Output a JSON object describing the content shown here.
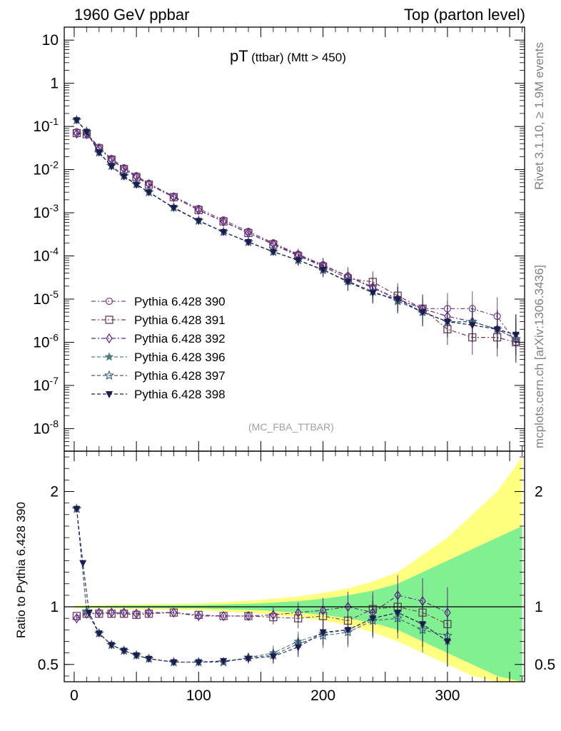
{
  "header": {
    "left": "1960 GeV ppbar",
    "right": "Top (parton level)"
  },
  "plot_title": {
    "main": "pT",
    "sub": "(ttbar) (Mtt > 450)"
  },
  "side_labels": {
    "rivet": "Rivet 3.1.10, ≥ 1.9M events",
    "mcplots": "mcplots.cern.ch [arXiv:1306.3436]"
  },
  "analysis_tag": "(MC_FBA_TTBAR)",
  "ratio_ylabel": "Ratio to Pythia 6.428 390",
  "colors": {
    "s390": "#7e4a86",
    "s391": "#6c3d57",
    "s392": "#5e2a8a",
    "s396": "#4e7d7a",
    "s397": "#3f5f7e",
    "s398": "#1c1c4f",
    "band_yellow": "#ffff80",
    "band_green": "#80f090"
  },
  "chart_data": [
    {
      "type": "scatter",
      "panel": "main",
      "title": "pT (ttbar) (Mtt > 450)",
      "xlabel": "",
      "ylabel": "",
      "xlim": [
        -8,
        362
      ],
      "ylim": [
        3e-09,
        20
      ],
      "yscale": "log",
      "y_tick_labels": [
        "10",
        "1",
        "10^-1",
        "10^-2",
        "10^-3",
        "10^-4",
        "10^-5",
        "10^-6",
        "10^-7",
        "10^-8"
      ],
      "legend_position": "lower-left",
      "series": [
        {
          "name": "Pythia 6.428 390",
          "marker": "open-circle",
          "line": "dash-dot",
          "x": [
            2,
            10,
            20,
            30,
            40,
            50,
            60,
            80,
            100,
            120,
            140,
            160,
            180,
            200,
            220,
            240,
            260,
            280,
            300,
            320,
            340,
            355
          ],
          "y": [
            0.075,
            0.07,
            0.033,
            0.018,
            0.011,
            0.0072,
            0.0048,
            0.0024,
            0.00125,
            0.00068,
            0.00037,
            0.0002,
            0.00011,
            6.2e-05,
            3.4e-05,
            1.9e-05,
            1e-05,
            6e-06,
            6e-06,
            6e-06,
            4e-06,
            1e-06
          ]
        },
        {
          "name": "Pythia 6.428 391",
          "marker": "open-square",
          "line": "dash-dot",
          "x": [
            2,
            10,
            20,
            30,
            40,
            50,
            60,
            80,
            100,
            120,
            140,
            160,
            180,
            200,
            220,
            240,
            260,
            280,
            300,
            320,
            340,
            355
          ],
          "y": [
            0.07,
            0.066,
            0.031,
            0.017,
            0.0103,
            0.0067,
            0.0045,
            0.0023,
            0.00116,
            0.00063,
            0.00034,
            0.000185,
            0.0001,
            5.7e-05,
            3e-05,
            2.5e-05,
            1.2e-05,
            6e-06,
            2e-06,
            1.3e-06,
            1.3e-06,
            1e-06
          ]
        },
        {
          "name": "Pythia 6.428 392",
          "marker": "open-diamond",
          "line": "dash-dot",
          "x": [
            2,
            10,
            20,
            30,
            40,
            50,
            60,
            80,
            100,
            120,
            140,
            160,
            180,
            200,
            220,
            240,
            260,
            280,
            300,
            320,
            340,
            355
          ],
          "y": [
            0.068,
            0.066,
            0.031,
            0.017,
            0.0104,
            0.0068,
            0.0046,
            0.0023,
            0.00115,
            0.00062,
            0.00034,
            0.00019,
            0.000105,
            6e-05,
            3.4e-05,
            1.8e-05,
            1e-05,
            6e-06,
            4e-06,
            3e-06,
            2e-06,
            1.2e-06
          ]
        },
        {
          "name": "Pythia 6.428 396",
          "marker": "star",
          "line": "dashed",
          "x": [
            2,
            10,
            20,
            30,
            40,
            50,
            60,
            80,
            100,
            120,
            140,
            160,
            180,
            200,
            220,
            240,
            260,
            280,
            300,
            320,
            340,
            355
          ],
          "y": [
            0.14,
            0.075,
            0.025,
            0.012,
            0.007,
            0.0045,
            0.003,
            0.0013,
            0.00065,
            0.00036,
            0.00021,
            0.000125,
            8e-05,
            4.8e-05,
            2.6e-05,
            1.5e-05,
            9e-06,
            5e-06,
            3e-06,
            3e-06,
            2e-06,
            1.5e-06
          ]
        },
        {
          "name": "Pythia 6.428 397",
          "marker": "open-star",
          "line": "dashed",
          "x": [
            2,
            10,
            20,
            30,
            40,
            50,
            60,
            80,
            100,
            120,
            140,
            160,
            180,
            200,
            220,
            240,
            260,
            280,
            300,
            320,
            340,
            355
          ],
          "y": [
            0.14,
            0.076,
            0.025,
            0.0122,
            0.0071,
            0.0046,
            0.003,
            0.00133,
            0.00066,
            0.00036,
            0.00021,
            0.000125,
            8e-05,
            4.7e-05,
            2.6e-05,
            1.5e-05,
            9e-06,
            5e-06,
            3e-06,
            3e-06,
            2e-06,
            1.2e-06
          ]
        },
        {
          "name": "Pythia 6.428 398",
          "marker": "filled-triangle-down",
          "line": "dashed",
          "x": [
            2,
            10,
            20,
            30,
            40,
            50,
            60,
            80,
            100,
            120,
            140,
            160,
            180,
            200,
            220,
            240,
            260,
            280,
            300,
            320,
            340,
            355
          ],
          "y": [
            0.14,
            0.075,
            0.025,
            0.012,
            0.007,
            0.0045,
            0.003,
            0.0013,
            0.00065,
            0.00036,
            0.00021,
            0.000125,
            8e-05,
            4.8e-05,
            2.5e-05,
            1.4e-05,
            1e-05,
            5e-06,
            3e-06,
            2.5e-06,
            2e-06,
            1.5e-06
          ]
        }
      ]
    },
    {
      "type": "scatter",
      "panel": "ratio",
      "xlabel": "",
      "ylabel": "Ratio to Pythia 6.428 390",
      "xlim": [
        -8,
        362
      ],
      "ylim": [
        0.35,
        2.35
      ],
      "x_tick_labels": [
        "0",
        "100",
        "200",
        "300"
      ],
      "y_tick_labels": [
        "0.5",
        "1",
        "2"
      ],
      "reference_line": 1,
      "uncertainty_band": {
        "x": [
          0,
          50,
          100,
          150,
          180,
          200,
          220,
          240,
          260,
          280,
          300,
          320,
          340,
          360
        ],
        "yellow_low": [
          0.99,
          0.98,
          0.97,
          0.94,
          0.91,
          0.88,
          0.84,
          0.78,
          0.7,
          0.6,
          0.5,
          0.4,
          0.35,
          0.35
        ],
        "yellow_high": [
          1.01,
          1.02,
          1.03,
          1.06,
          1.09,
          1.12,
          1.16,
          1.22,
          1.3,
          1.45,
          1.6,
          1.8,
          2.0,
          2.3
        ],
        "green_low": [
          0.995,
          0.99,
          0.985,
          0.97,
          0.95,
          0.93,
          0.9,
          0.86,
          0.8,
          0.7,
          0.6,
          0.5,
          0.4,
          0.35
        ],
        "green_high": [
          1.005,
          1.01,
          1.015,
          1.03,
          1.05,
          1.07,
          1.1,
          1.14,
          1.2,
          1.3,
          1.4,
          1.5,
          1.6,
          1.7
        ]
      },
      "series": [
        {
          "name": "Pythia 6.428 391",
          "x": [
            2,
            10,
            20,
            30,
            40,
            50,
            60,
            80,
            100,
            120,
            140,
            160,
            180,
            200,
            220,
            240,
            260,
            280,
            300
          ],
          "y": [
            0.92,
            0.94,
            0.94,
            0.94,
            0.94,
            0.93,
            0.94,
            0.95,
            0.93,
            0.92,
            0.92,
            0.91,
            0.9,
            0.92,
            0.88,
            0.98,
            1.0,
            0.95,
            0.85
          ]
        },
        {
          "name": "Pythia 6.428 392",
          "x": [
            2,
            10,
            20,
            30,
            40,
            50,
            60,
            80,
            100,
            120,
            140,
            160,
            180,
            200,
            220,
            240,
            260,
            280,
            300
          ],
          "y": [
            0.9,
            0.94,
            0.95,
            0.95,
            0.95,
            0.94,
            0.95,
            0.95,
            0.92,
            0.92,
            0.92,
            0.93,
            0.95,
            0.97,
            1.0,
            0.95,
            1.1,
            1.05,
            0.95
          ]
        },
        {
          "name": "Pythia 6.428 396",
          "x": [
            2,
            10,
            20,
            30,
            40,
            50,
            60,
            80,
            100,
            120,
            140,
            160,
            180,
            200,
            220,
            240,
            260,
            280,
            300
          ],
          "y": [
            1.85,
            0.96,
            0.77,
            0.67,
            0.62,
            0.58,
            0.55,
            0.52,
            0.52,
            0.52,
            0.56,
            0.6,
            0.7,
            0.77,
            0.8,
            0.9,
            0.95,
            0.85,
            0.7
          ]
        },
        {
          "name": "Pythia 6.428 397",
          "x": [
            2,
            10,
            20,
            30,
            40,
            50,
            60,
            80,
            100,
            120,
            140,
            160,
            180,
            200,
            220,
            240,
            260,
            280,
            300
          ],
          "y": [
            1.85,
            0.96,
            0.77,
            0.67,
            0.62,
            0.58,
            0.55,
            0.52,
            0.52,
            0.52,
            0.56,
            0.58,
            0.68,
            0.75,
            0.78,
            0.88,
            0.9,
            0.8,
            0.75
          ]
        },
        {
          "name": "Pythia 6.428 398",
          "x": [
            2,
            7,
            12,
            20,
            30,
            40,
            50,
            60,
            80,
            100,
            120,
            140,
            160,
            180,
            200,
            220,
            240,
            260,
            280,
            300
          ],
          "y": [
            1.85,
            1.38,
            0.95,
            0.77,
            0.67,
            0.62,
            0.58,
            0.55,
            0.52,
            0.52,
            0.53,
            0.55,
            0.57,
            0.65,
            0.78,
            0.8,
            0.9,
            0.95,
            0.85,
            0.7
          ]
        }
      ]
    }
  ]
}
